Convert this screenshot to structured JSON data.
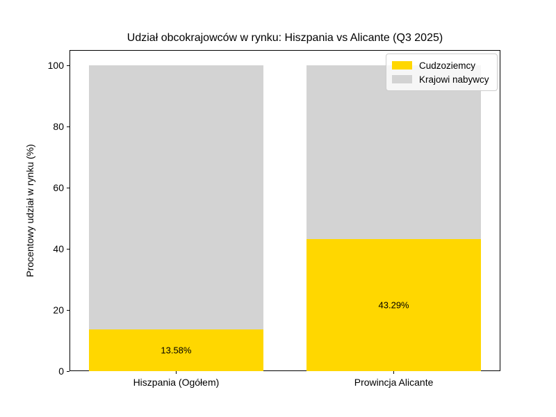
{
  "chart_data": {
    "type": "bar",
    "stacked": true,
    "title": "Udział obcokrajowców w rynku: Hiszpania vs Alicante (Q3 2025)",
    "ylabel": "Procentowy udział w rynku (%)",
    "xlabel": "",
    "categories": [
      "Hiszpania (Ogółem)",
      "Prowincja Alicante"
    ],
    "series": [
      {
        "name": "Cudzoziemcy",
        "color": "#FFD700",
        "values": [
          13.58,
          43.29
        ]
      },
      {
        "name": "Krajowi nabywcy",
        "color": "#D3D3D3",
        "values": [
          86.42,
          56.71
        ]
      }
    ],
    "bar_value_labels": [
      "13.58%",
      "43.29%"
    ],
    "yticks": [
      0,
      20,
      40,
      60,
      80,
      100
    ],
    "ylim": [
      0,
      105
    ],
    "grid": false,
    "legend_position": "upper right",
    "background_color": "#FFFFFF",
    "text_color": "#000000",
    "axis_color": "#000000"
  }
}
